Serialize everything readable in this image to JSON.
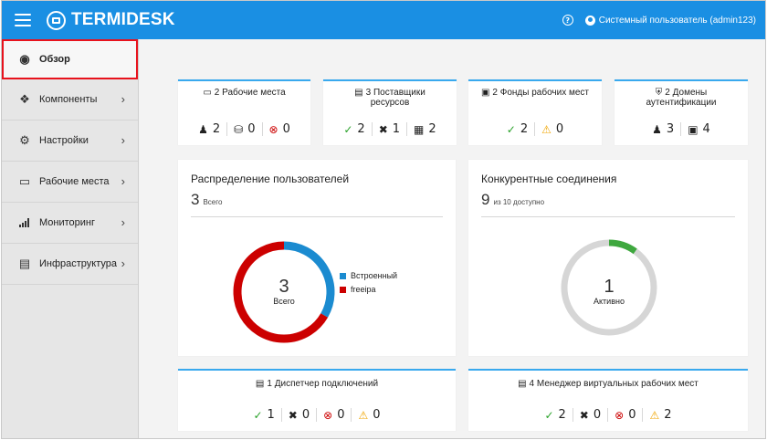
{
  "header": {
    "logo_text": "TERMIDESK",
    "user": "Системный пользователь (admin123)",
    "color": "#1a8fe3"
  },
  "sidebar": {
    "items": [
      {
        "label": "Обзор",
        "icon": "tachometer-icon",
        "active": true
      },
      {
        "label": "Компоненты",
        "icon": "cubes-icon"
      },
      {
        "label": "Настройки",
        "icon": "cogs-icon"
      },
      {
        "label": "Рабочие места",
        "icon": "monitor-icon"
      },
      {
        "label": "Мониторинг",
        "icon": "signal-bars-icon"
      },
      {
        "label": "Инфраструктура",
        "icon": "server-icon"
      }
    ]
  },
  "cards": {
    "workplaces": {
      "title": "2 Рабочие места",
      "users": "2",
      "db": "0",
      "errors": "0"
    },
    "providers": {
      "title_line1": "3 Поставщики",
      "title_line2": "ресурсов",
      "ok": "2",
      "maintenance": "1",
      "services": "2"
    },
    "pools": {
      "title": "2 Фонды рабочих мест",
      "ok": "2",
      "warnings": "0"
    },
    "domains": {
      "title_line1": "2 Домены",
      "title_line2": "аутентификации",
      "users": "3",
      "groups": "4"
    },
    "dispatcher": {
      "title": "1 Диспетчер подключений",
      "ok": "1",
      "maintenance": "0",
      "errors": "0",
      "warnings": "0"
    },
    "vdi_manager": {
      "title": "4 Менеджер виртуальных рабочих мест",
      "ok": "2",
      "maintenance": "0",
      "errors": "0",
      "warnings": "2"
    }
  },
  "users_chart": {
    "title": "Распределение пользователей",
    "total": "3",
    "total_label": "Всего",
    "center_value": "3",
    "center_label": "Всего",
    "chart_data": {
      "type": "pie",
      "categories": [
        "Встроенный",
        "freeipa"
      ],
      "values": [
        1,
        2
      ],
      "colors": [
        "#1b8bd0",
        "#cc0000"
      ]
    }
  },
  "connections_chart": {
    "title": "Конкурентные соединения",
    "available": "9",
    "available_label": "из 10 доступно",
    "center_value": "1",
    "center_label": "Активно",
    "chart_data": {
      "type": "pie",
      "categories": [
        "Активно",
        "доступно"
      ],
      "values": [
        1,
        9
      ],
      "colors": [
        "#3fa83f",
        "#d6d6d6"
      ]
    }
  }
}
